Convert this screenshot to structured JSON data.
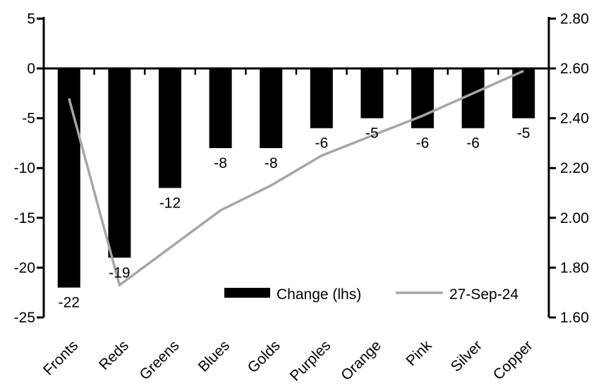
{
  "chart_data": {
    "type": "combo_bar_line",
    "title": "",
    "categories": [
      "Fronts",
      "Reds",
      "Greens",
      "Blues",
      "Golds",
      "Purples",
      "Orange",
      "Pink",
      "Silver",
      "Copper"
    ],
    "series": [
      {
        "name": "Change (lhs)",
        "type": "bar",
        "axis": "left",
        "color": "#000000",
        "values": [
          -22,
          -19,
          -12,
          -8,
          -8,
          -6,
          -5,
          -6,
          -6,
          -5
        ]
      },
      {
        "name": "27-Sep-24",
        "type": "line",
        "axis": "right",
        "color": "#a6a6a6",
        "values": [
          2.48,
          1.73,
          1.88,
          2.03,
          2.13,
          2.25,
          2.33,
          2.41,
          2.5,
          2.59
        ]
      }
    ],
    "bar_data_labels": [
      "-22",
      "-19",
      "-12",
      "-8",
      "-8",
      "-6",
      "-5",
      "-6",
      "-6",
      "-5"
    ],
    "left_axis": {
      "min": -25,
      "max": 5,
      "tick_values": [
        5,
        0,
        -5,
        -10,
        -15,
        -20,
        -25
      ],
      "tick_labels": [
        "5",
        "0",
        "-5",
        "-10",
        "-15",
        "-20",
        "-25"
      ]
    },
    "right_axis": {
      "min": 1.6,
      "max": 2.8,
      "tick_values": [
        2.8,
        2.6,
        2.4,
        2.2,
        2.0,
        1.8,
        1.6
      ],
      "tick_labels": [
        "2.80",
        "2.60",
        "2.40",
        "2.20",
        "2.00",
        "1.80",
        "1.60"
      ]
    },
    "legend": {
      "position": "bottom-center-inside",
      "entries": [
        {
          "label": "Change (lhs)",
          "swatch": "bar",
          "color": "#000000"
        },
        {
          "label": "27-Sep-24",
          "swatch": "line",
          "color": "#a6a6a6"
        }
      ]
    },
    "grid": "off",
    "baseline_value_left": 0,
    "baseline_value_right": 2.6
  },
  "colors": {
    "background": "#ffffff",
    "axis": "#000000",
    "text": "#000000",
    "bar": "#000000",
    "line": "#a6a6a6"
  }
}
